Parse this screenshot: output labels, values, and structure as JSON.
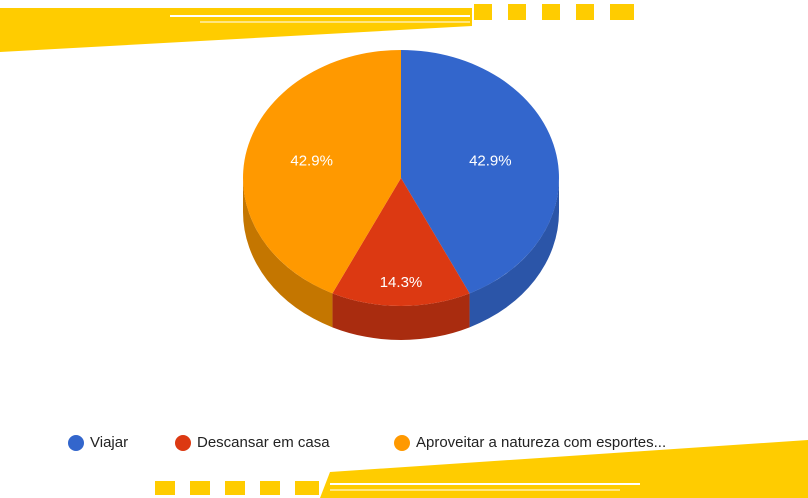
{
  "chart_data": {
    "type": "pie",
    "categories": [
      "Viajar",
      "Descansar em casa",
      "Aproveitar a natureza com esportes..."
    ],
    "values": [
      42.9,
      14.3,
      42.9
    ],
    "value_labels": [
      "42.9%",
      "14.3%",
      "42.9%"
    ],
    "colors": [
      "#3366cc",
      "#dc3912",
      "#ff9900"
    ],
    "side_colors": [
      "#2b55a8",
      "#a92c0f",
      "#c47600"
    ]
  }
}
